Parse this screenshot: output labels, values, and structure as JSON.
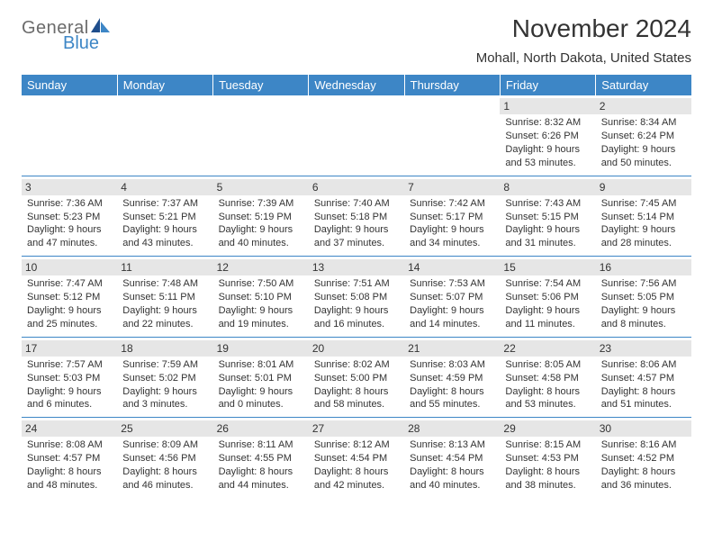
{
  "brand": {
    "general": "General",
    "blue": "Blue"
  },
  "title": "November 2024",
  "location": "Mohall, North Dakota, United States",
  "accent_color": "#3d86c6",
  "daynum_bg": "#e6e6e6",
  "text_color": "#333333",
  "weekdays": [
    "Sunday",
    "Monday",
    "Tuesday",
    "Wednesday",
    "Thursday",
    "Friday",
    "Saturday"
  ],
  "weeks": [
    [
      null,
      null,
      null,
      null,
      null,
      {
        "n": "1",
        "sr": "Sunrise: 8:32 AM",
        "ss": "Sunset: 6:26 PM",
        "d1": "Daylight: 9 hours",
        "d2": "and 53 minutes."
      },
      {
        "n": "2",
        "sr": "Sunrise: 8:34 AM",
        "ss": "Sunset: 6:24 PM",
        "d1": "Daylight: 9 hours",
        "d2": "and 50 minutes."
      }
    ],
    [
      {
        "n": "3",
        "sr": "Sunrise: 7:36 AM",
        "ss": "Sunset: 5:23 PM",
        "d1": "Daylight: 9 hours",
        "d2": "and 47 minutes."
      },
      {
        "n": "4",
        "sr": "Sunrise: 7:37 AM",
        "ss": "Sunset: 5:21 PM",
        "d1": "Daylight: 9 hours",
        "d2": "and 43 minutes."
      },
      {
        "n": "5",
        "sr": "Sunrise: 7:39 AM",
        "ss": "Sunset: 5:19 PM",
        "d1": "Daylight: 9 hours",
        "d2": "and 40 minutes."
      },
      {
        "n": "6",
        "sr": "Sunrise: 7:40 AM",
        "ss": "Sunset: 5:18 PM",
        "d1": "Daylight: 9 hours",
        "d2": "and 37 minutes."
      },
      {
        "n": "7",
        "sr": "Sunrise: 7:42 AM",
        "ss": "Sunset: 5:17 PM",
        "d1": "Daylight: 9 hours",
        "d2": "and 34 minutes."
      },
      {
        "n": "8",
        "sr": "Sunrise: 7:43 AM",
        "ss": "Sunset: 5:15 PM",
        "d1": "Daylight: 9 hours",
        "d2": "and 31 minutes."
      },
      {
        "n": "9",
        "sr": "Sunrise: 7:45 AM",
        "ss": "Sunset: 5:14 PM",
        "d1": "Daylight: 9 hours",
        "d2": "and 28 minutes."
      }
    ],
    [
      {
        "n": "10",
        "sr": "Sunrise: 7:47 AM",
        "ss": "Sunset: 5:12 PM",
        "d1": "Daylight: 9 hours",
        "d2": "and 25 minutes."
      },
      {
        "n": "11",
        "sr": "Sunrise: 7:48 AM",
        "ss": "Sunset: 5:11 PM",
        "d1": "Daylight: 9 hours",
        "d2": "and 22 minutes."
      },
      {
        "n": "12",
        "sr": "Sunrise: 7:50 AM",
        "ss": "Sunset: 5:10 PM",
        "d1": "Daylight: 9 hours",
        "d2": "and 19 minutes."
      },
      {
        "n": "13",
        "sr": "Sunrise: 7:51 AM",
        "ss": "Sunset: 5:08 PM",
        "d1": "Daylight: 9 hours",
        "d2": "and 16 minutes."
      },
      {
        "n": "14",
        "sr": "Sunrise: 7:53 AM",
        "ss": "Sunset: 5:07 PM",
        "d1": "Daylight: 9 hours",
        "d2": "and 14 minutes."
      },
      {
        "n": "15",
        "sr": "Sunrise: 7:54 AM",
        "ss": "Sunset: 5:06 PM",
        "d1": "Daylight: 9 hours",
        "d2": "and 11 minutes."
      },
      {
        "n": "16",
        "sr": "Sunrise: 7:56 AM",
        "ss": "Sunset: 5:05 PM",
        "d1": "Daylight: 9 hours",
        "d2": "and 8 minutes."
      }
    ],
    [
      {
        "n": "17",
        "sr": "Sunrise: 7:57 AM",
        "ss": "Sunset: 5:03 PM",
        "d1": "Daylight: 9 hours",
        "d2": "and 6 minutes."
      },
      {
        "n": "18",
        "sr": "Sunrise: 7:59 AM",
        "ss": "Sunset: 5:02 PM",
        "d1": "Daylight: 9 hours",
        "d2": "and 3 minutes."
      },
      {
        "n": "19",
        "sr": "Sunrise: 8:01 AM",
        "ss": "Sunset: 5:01 PM",
        "d1": "Daylight: 9 hours",
        "d2": "and 0 minutes."
      },
      {
        "n": "20",
        "sr": "Sunrise: 8:02 AM",
        "ss": "Sunset: 5:00 PM",
        "d1": "Daylight: 8 hours",
        "d2": "and 58 minutes."
      },
      {
        "n": "21",
        "sr": "Sunrise: 8:03 AM",
        "ss": "Sunset: 4:59 PM",
        "d1": "Daylight: 8 hours",
        "d2": "and 55 minutes."
      },
      {
        "n": "22",
        "sr": "Sunrise: 8:05 AM",
        "ss": "Sunset: 4:58 PM",
        "d1": "Daylight: 8 hours",
        "d2": "and 53 minutes."
      },
      {
        "n": "23",
        "sr": "Sunrise: 8:06 AM",
        "ss": "Sunset: 4:57 PM",
        "d1": "Daylight: 8 hours",
        "d2": "and 51 minutes."
      }
    ],
    [
      {
        "n": "24",
        "sr": "Sunrise: 8:08 AM",
        "ss": "Sunset: 4:57 PM",
        "d1": "Daylight: 8 hours",
        "d2": "and 48 minutes."
      },
      {
        "n": "25",
        "sr": "Sunrise: 8:09 AM",
        "ss": "Sunset: 4:56 PM",
        "d1": "Daylight: 8 hours",
        "d2": "and 46 minutes."
      },
      {
        "n": "26",
        "sr": "Sunrise: 8:11 AM",
        "ss": "Sunset: 4:55 PM",
        "d1": "Daylight: 8 hours",
        "d2": "and 44 minutes."
      },
      {
        "n": "27",
        "sr": "Sunrise: 8:12 AM",
        "ss": "Sunset: 4:54 PM",
        "d1": "Daylight: 8 hours",
        "d2": "and 42 minutes."
      },
      {
        "n": "28",
        "sr": "Sunrise: 8:13 AM",
        "ss": "Sunset: 4:54 PM",
        "d1": "Daylight: 8 hours",
        "d2": "and 40 minutes."
      },
      {
        "n": "29",
        "sr": "Sunrise: 8:15 AM",
        "ss": "Sunset: 4:53 PM",
        "d1": "Daylight: 8 hours",
        "d2": "and 38 minutes."
      },
      {
        "n": "30",
        "sr": "Sunrise: 8:16 AM",
        "ss": "Sunset: 4:52 PM",
        "d1": "Daylight: 8 hours",
        "d2": "and 36 minutes."
      }
    ]
  ]
}
